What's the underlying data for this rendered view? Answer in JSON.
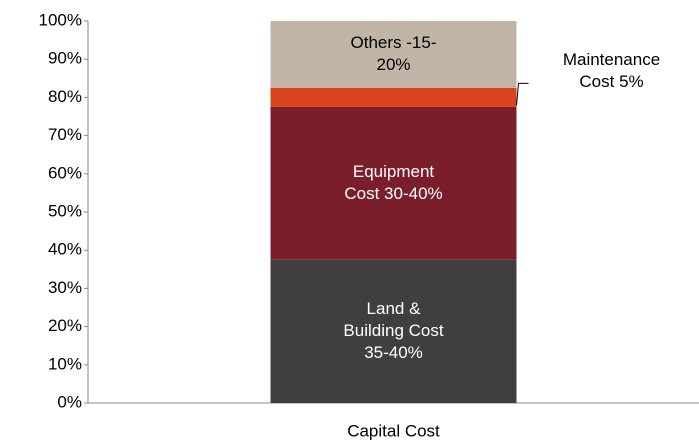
{
  "chart_data": {
    "type": "stacked_bar",
    "categories": [
      "Capital Cost"
    ],
    "series": [
      {
        "name": "Land & Building Cost",
        "color": "#3f3f3f",
        "values": [
          37.5
        ],
        "value_labels": [
          "35-40%"
        ],
        "text_color": "#ffffff"
      },
      {
        "name": "Equipment Cost",
        "color": "#7b1e2b",
        "values": [
          40
        ],
        "value_labels": [
          "30-40%"
        ],
        "text_color": "#ffffff"
      },
      {
        "name": "Maintenance Cost",
        "color": "#d8431c",
        "values": [
          5
        ],
        "value_labels": [
          "5%"
        ],
        "text_color": "#000000",
        "label_outside": true
      },
      {
        "name": "Others",
        "color": "#c0b5a6",
        "values": [
          17.5
        ],
        "value_labels": [
          "-15-20%"
        ],
        "text_color": "#000000"
      }
    ],
    "ylim": [
      0,
      100
    ],
    "yticks": [
      {
        "value": 0,
        "label": "0%"
      },
      {
        "value": 10,
        "label": "10%"
      },
      {
        "value": 20,
        "label": "20%"
      },
      {
        "value": 30,
        "label": "30%"
      },
      {
        "value": 40,
        "label": "40%"
      },
      {
        "value": 50,
        "label": "50%"
      },
      {
        "value": 60,
        "label": "60%"
      },
      {
        "value": 70,
        "label": "70%"
      },
      {
        "value": 80,
        "label": "80%"
      },
      {
        "value": 90,
        "label": "90%"
      },
      {
        "value": 100,
        "label": "100%"
      }
    ]
  }
}
